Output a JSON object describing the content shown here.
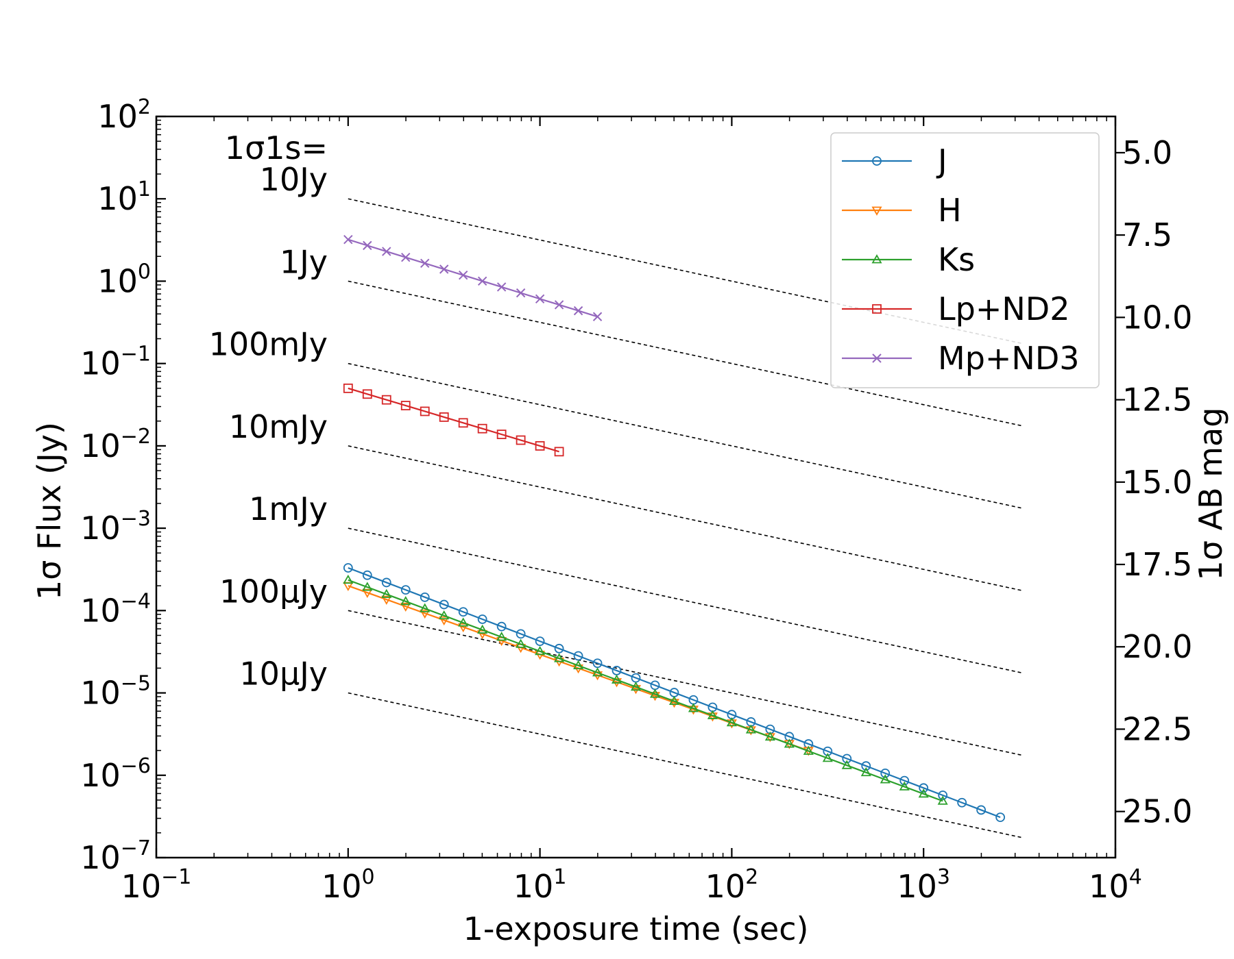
{
  "chart_data": {
    "type": "line",
    "xlabel": "1-exposure time (sec)",
    "ylabel": "1σ Flux (Jy)",
    "y2label": "1σ AB mag",
    "xscale": "log",
    "yscale": "log",
    "xlim": [
      0.1,
      10000
    ],
    "ylim": [
      1e-07,
      100
    ],
    "y2lim": [
      26.4,
      3.9
    ],
    "x_ticks": [
      {
        "base": "10",
        "exp": "−1",
        "value": 0.1
      },
      {
        "base": "10",
        "exp": "0",
        "value": 1
      },
      {
        "base": "10",
        "exp": "1",
        "value": 10
      },
      {
        "base": "10",
        "exp": "2",
        "value": 100
      },
      {
        "base": "10",
        "exp": "3",
        "value": 1000
      },
      {
        "base": "10",
        "exp": "4",
        "value": 10000
      }
    ],
    "y_ticks": [
      {
        "base": "10",
        "exp": "2",
        "value": 100
      },
      {
        "base": "10",
        "exp": "1",
        "value": 10
      },
      {
        "base": "10",
        "exp": "0",
        "value": 1
      },
      {
        "base": "10",
        "exp": "−1",
        "value": 0.1
      },
      {
        "base": "10",
        "exp": "−2",
        "value": 0.01
      },
      {
        "base": "10",
        "exp": "−3",
        "value": 0.001
      },
      {
        "base": "10",
        "exp": "−4",
        "value": 0.0001
      },
      {
        "base": "10",
        "exp": "−5",
        "value": 1e-05
      },
      {
        "base": "10",
        "exp": "−6",
        "value": 1e-06
      },
      {
        "base": "10",
        "exp": "−7",
        "value": 1e-07
      }
    ],
    "y2_ticks": [
      {
        "label": "5.0",
        "value": 5.0
      },
      {
        "label": "7.5",
        "value": 7.5
      },
      {
        "label": "10.0",
        "value": 10.0
      },
      {
        "label": "12.5",
        "value": 12.5
      },
      {
        "label": "15.0",
        "value": 15.0
      },
      {
        "label": "17.5",
        "value": 17.5
      },
      {
        "label": "20.0",
        "value": 20.0
      },
      {
        "label": "22.5",
        "value": 22.5
      },
      {
        "label": "25.0",
        "value": 25.0
      }
    ],
    "reference_lines": {
      "x_range": [
        1,
        3300
      ],
      "slope": -0.5,
      "labels": [
        "1σ1s=",
        "10Jy",
        "1Jy",
        "100mJy",
        "10mJy",
        "1mJy",
        "100μJy",
        "10μJy"
      ],
      "values_at_1s": [
        10,
        1,
        0.1,
        0.01,
        0.001,
        0.0001,
        1e-05
      ]
    },
    "legend_position": "top-right",
    "series": [
      {
        "name": "J",
        "color": "#1f77b4",
        "marker": "circle",
        "x_start": 1,
        "x_end": 2500,
        "y_start": 0.00033,
        "y_end": 3.1e-07
      },
      {
        "name": "H",
        "color": "#ff7f0e",
        "marker": "triangle-down",
        "x_start": 1,
        "x_end": 250,
        "y_start": 0.0002,
        "y_end": 2e-06
      },
      {
        "name": "Ks",
        "color": "#2ca02c",
        "marker": "triangle-up",
        "x_start": 1,
        "x_end": 1250,
        "y_start": 0.000235,
        "y_end": 4.9e-07
      },
      {
        "name": "Lp+ND2",
        "color": "#d62728",
        "marker": "square",
        "x_start": 1,
        "x_end": 12.6,
        "y_start": 0.05,
        "y_end": 0.0085
      },
      {
        "name": "Mp+ND3",
        "color": "#9467bd",
        "marker": "x",
        "x_start": 1,
        "x_end": 20,
        "y_start": 3.2,
        "y_end": 0.37
      }
    ]
  }
}
